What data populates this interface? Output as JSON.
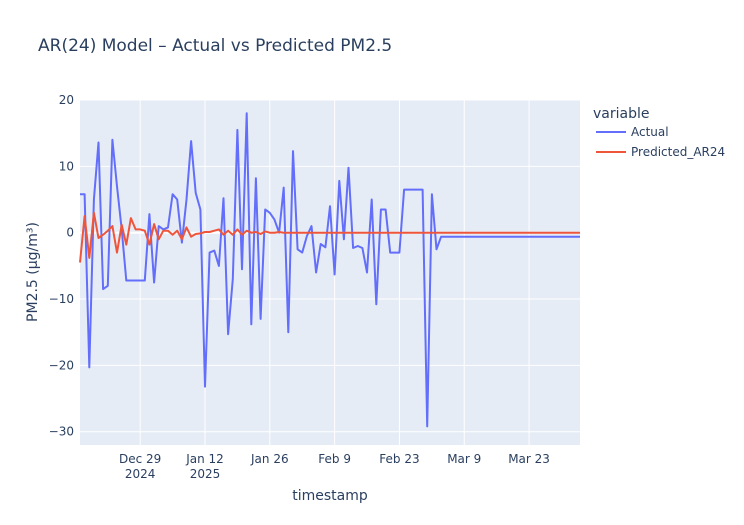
{
  "chart_data": {
    "type": "line",
    "title": "AR(24) Model – Actual vs Predicted PM2.5",
    "xlabel": "timestamp",
    "ylabel": "PM2.5 (μg/m³)",
    "ylim": [
      -32,
      20
    ],
    "yticks": [
      20,
      10,
      0,
      -10,
      -20,
      -30
    ],
    "ytick_labels": [
      "20",
      "10",
      "0",
      "−10",
      "−20",
      "−30"
    ],
    "xlim": [
      "2024-12-16",
      "2025-04-03"
    ],
    "xticks": [
      {
        "date": "2024-12-29",
        "label": "Dec 29",
        "sublabel": "2024"
      },
      {
        "date": "2025-01-12",
        "label": "Jan 12",
        "sublabel": "2025"
      },
      {
        "date": "2025-01-26",
        "label": "Jan 26",
        "sublabel": ""
      },
      {
        "date": "2025-02-09",
        "label": "Feb 9",
        "sublabel": ""
      },
      {
        "date": "2025-02-23",
        "label": "Feb 23",
        "sublabel": ""
      },
      {
        "date": "2025-03-09",
        "label": "Mar 9",
        "sublabel": ""
      },
      {
        "date": "2025-03-23",
        "label": "Mar 23",
        "sublabel": ""
      }
    ],
    "legend": {
      "title": "variable",
      "placement": "right"
    },
    "grid": true,
    "colors": {
      "plot_bg": "#E5ECF6",
      "grid": "#ffffff"
    },
    "series": [
      {
        "name": "Actual",
        "color": "#636efa",
        "points": [
          [
            "2024-12-16",
            5.8
          ],
          [
            "2024-12-17",
            5.8
          ],
          [
            "2024-12-18",
            -20.3
          ],
          [
            "2024-12-19",
            5.0
          ],
          [
            "2024-12-20",
            13.6
          ],
          [
            "2024-12-21",
            -8.5
          ],
          [
            "2024-12-22",
            -8.0
          ],
          [
            "2024-12-23",
            14.0
          ],
          [
            "2024-12-24",
            7.0
          ],
          [
            "2024-12-25",
            0.5
          ],
          [
            "2024-12-26",
            -7.2
          ],
          [
            "2024-12-27",
            -7.2
          ],
          [
            "2024-12-28",
            -7.2
          ],
          [
            "2024-12-29",
            -7.2
          ],
          [
            "2024-12-30",
            -7.2
          ],
          [
            "2024-12-31",
            2.8
          ],
          [
            "2025-01-01",
            -7.5
          ],
          [
            "2025-01-02",
            1.0
          ],
          [
            "2025-01-03",
            0.5
          ],
          [
            "2025-01-04",
            0.8
          ],
          [
            "2025-01-05",
            5.8
          ],
          [
            "2025-01-06",
            5.0
          ],
          [
            "2025-01-07",
            -1.5
          ],
          [
            "2025-01-08",
            5.0
          ],
          [
            "2025-01-09",
            13.8
          ],
          [
            "2025-01-10",
            6.0
          ],
          [
            "2025-01-11",
            3.5
          ],
          [
            "2025-01-12",
            -23.2
          ],
          [
            "2025-01-13",
            -3.0
          ],
          [
            "2025-01-14",
            -2.7
          ],
          [
            "2025-01-15",
            -5.0
          ],
          [
            "2025-01-16",
            5.2
          ],
          [
            "2025-01-17",
            -15.3
          ],
          [
            "2025-01-18",
            -7.0
          ],
          [
            "2025-01-19",
            15.5
          ],
          [
            "2025-01-20",
            -5.5
          ],
          [
            "2025-01-21",
            18.0
          ],
          [
            "2025-01-22",
            -13.8
          ],
          [
            "2025-01-23",
            8.2
          ],
          [
            "2025-01-24",
            -13.0
          ],
          [
            "2025-01-25",
            3.5
          ],
          [
            "2025-01-26",
            3.0
          ],
          [
            "2025-01-27",
            2.0
          ],
          [
            "2025-01-28",
            0.0
          ],
          [
            "2025-01-29",
            6.8
          ],
          [
            "2025-01-30",
            -15.0
          ],
          [
            "2025-01-31",
            12.3
          ],
          [
            "2025-02-01",
            -2.5
          ],
          [
            "2025-02-02",
            -3.0
          ],
          [
            "2025-02-03",
            -0.5
          ],
          [
            "2025-02-04",
            1.0
          ],
          [
            "2025-02-05",
            -6.0
          ],
          [
            "2025-02-06",
            -1.7
          ],
          [
            "2025-02-07",
            -2.2
          ],
          [
            "2025-02-08",
            4.0
          ],
          [
            "2025-02-09",
            -6.3
          ],
          [
            "2025-02-10",
            7.8
          ],
          [
            "2025-02-11",
            -1.0
          ],
          [
            "2025-02-12",
            9.8
          ],
          [
            "2025-02-13",
            -2.3
          ],
          [
            "2025-02-14",
            -2.0
          ],
          [
            "2025-02-15",
            -2.3
          ],
          [
            "2025-02-16",
            -6.0
          ],
          [
            "2025-02-17",
            5.0
          ],
          [
            "2025-02-18",
            -10.8
          ],
          [
            "2025-02-19",
            3.5
          ],
          [
            "2025-02-20",
            3.5
          ],
          [
            "2025-02-21",
            -3.0
          ],
          [
            "2025-02-22",
            -3.0
          ],
          [
            "2025-02-23",
            -3.0
          ],
          [
            "2025-02-24",
            6.5
          ],
          [
            "2025-02-25",
            6.5
          ],
          [
            "2025-02-26",
            6.5
          ],
          [
            "2025-02-27",
            6.5
          ],
          [
            "2025-02-28",
            6.5
          ],
          [
            "2025-03-01",
            -29.2
          ],
          [
            "2025-03-02",
            5.8
          ],
          [
            "2025-03-03",
            -2.5
          ],
          [
            "2025-03-04",
            -0.6
          ],
          [
            "2025-03-05",
            -0.6
          ],
          [
            "2025-03-10",
            -0.6
          ],
          [
            "2025-03-20",
            -0.6
          ],
          [
            "2025-03-30",
            -0.6
          ],
          [
            "2025-04-03",
            -0.6
          ]
        ]
      },
      {
        "name": "Predicted_AR24",
        "color": "#EF553B",
        "points": [
          [
            "2024-12-16",
            -4.5
          ],
          [
            "2024-12-17",
            2.5
          ],
          [
            "2024-12-18",
            -3.8
          ],
          [
            "2024-12-19",
            3.0
          ],
          [
            "2024-12-20",
            -0.8
          ],
          [
            "2024-12-21",
            -0.3
          ],
          [
            "2024-12-22",
            0.3
          ],
          [
            "2024-12-23",
            1.0
          ],
          [
            "2024-12-24",
            -3.0
          ],
          [
            "2024-12-25",
            1.2
          ],
          [
            "2024-12-26",
            -1.8
          ],
          [
            "2024-12-27",
            2.2
          ],
          [
            "2024-12-28",
            0.5
          ],
          [
            "2024-12-29",
            0.5
          ],
          [
            "2024-12-30",
            0.3
          ],
          [
            "2024-12-31",
            -1.8
          ],
          [
            "2025-01-01",
            1.3
          ],
          [
            "2025-01-02",
            -1.0
          ],
          [
            "2025-01-03",
            0.3
          ],
          [
            "2025-01-04",
            0.3
          ],
          [
            "2025-01-05",
            -0.3
          ],
          [
            "2025-01-06",
            0.3
          ],
          [
            "2025-01-07",
            -1.0
          ],
          [
            "2025-01-08",
            0.8
          ],
          [
            "2025-01-09",
            -0.6
          ],
          [
            "2025-01-10",
            -0.2
          ],
          [
            "2025-01-11",
            -0.1
          ],
          [
            "2025-01-12",
            0.1
          ],
          [
            "2025-01-13",
            0.1
          ],
          [
            "2025-01-14",
            0.3
          ],
          [
            "2025-01-15",
            0.5
          ],
          [
            "2025-01-16",
            -0.3
          ],
          [
            "2025-01-17",
            0.3
          ],
          [
            "2025-01-18",
            -0.3
          ],
          [
            "2025-01-19",
            0.5
          ],
          [
            "2025-01-20",
            -0.3
          ],
          [
            "2025-01-21",
            0.3
          ],
          [
            "2025-01-22",
            0.0
          ],
          [
            "2025-01-23",
            0.1
          ],
          [
            "2025-01-24",
            -0.2
          ],
          [
            "2025-01-25",
            0.2
          ],
          [
            "2025-01-26",
            0.0
          ],
          [
            "2025-01-27",
            0.0
          ],
          [
            "2025-01-28",
            0.1
          ],
          [
            "2025-01-29",
            0.0
          ],
          [
            "2025-02-10",
            0.0
          ],
          [
            "2025-02-28",
            0.0
          ],
          [
            "2025-03-20",
            0.0
          ],
          [
            "2025-04-03",
            0.0
          ]
        ]
      }
    ]
  }
}
